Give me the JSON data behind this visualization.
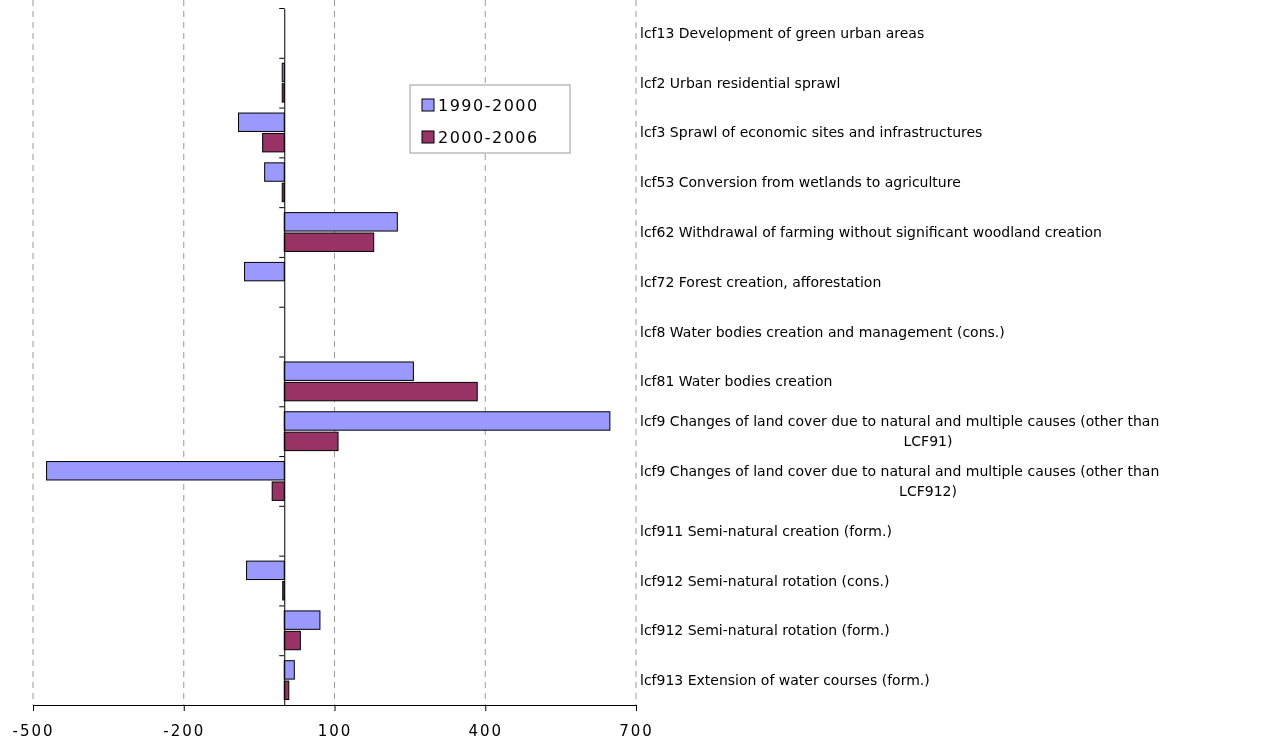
{
  "chart_data": {
    "type": "bar",
    "orientation": "horizontal",
    "categories": [
      "lcf13 Development of green urban areas",
      "lcf2 Urban residential sprawl",
      "lcf3 Sprawl of economic sites and infrastructures",
      "lcf53 Conversion from wetlands to agriculture",
      "lcf62 Withdrawal of farming without significant woodland creation",
      "lcf72 Forest creation, afforestation",
      "lcf8 Water bodies creation and management (cons.)",
      "lcf81 Water bodies creation",
      "lcf9 Changes of land cover due to natural and multiple causes (other than LCF91)",
      "lcf9 Changes of land cover due to natural and multiple causes (other than LCF912)",
      "lcf911 Semi-natural creation (form.)",
      "lcf912 Semi-natural rotation (cons.)",
      "lcf912 Semi-natural rotation (form.)",
      "lcf913 Extension of water courses (form.)"
    ],
    "series": [
      {
        "name": "1990-2000",
        "color": "#9999ff",
        "values": [
          0,
          -4,
          -91,
          -39,
          225,
          -79,
          0,
          257,
          648,
          -473,
          0,
          -75,
          71,
          20
        ]
      },
      {
        "name": "2000-2006",
        "color": "#993366",
        "values": [
          0,
          -4,
          -43,
          -4,
          178,
          0,
          0,
          384,
          107,
          -24,
          0,
          -3,
          32,
          9
        ]
      }
    ],
    "xlim": [
      -500,
      700
    ],
    "xticks": [
      -500,
      -200,
      100,
      400,
      700
    ],
    "grid": "x",
    "legend": "top right"
  }
}
